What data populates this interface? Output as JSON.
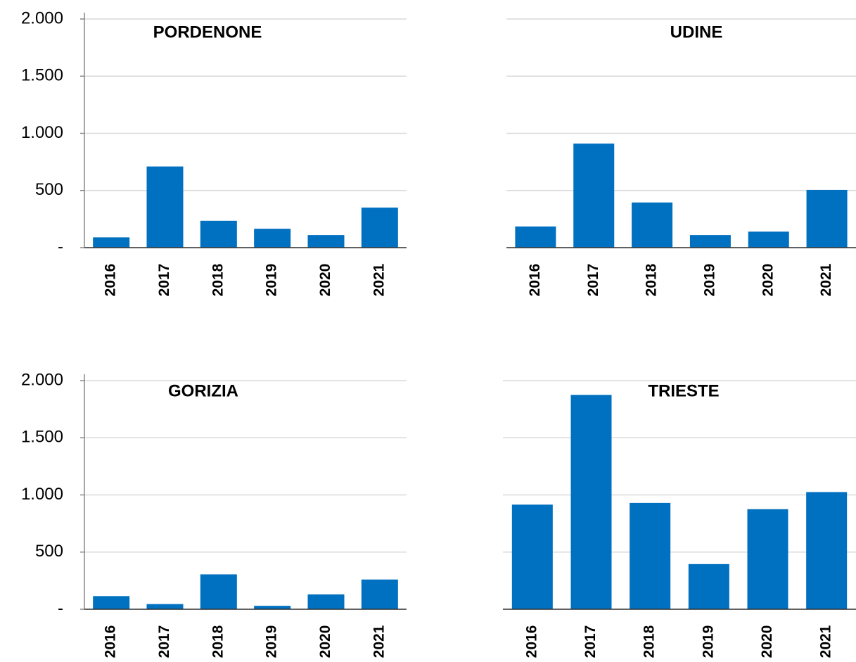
{
  "chart_data": [
    {
      "type": "bar",
      "title": "PORDENONE",
      "categories": [
        "2016",
        "2017",
        "2018",
        "2019",
        "2020",
        "2021"
      ],
      "values": [
        90,
        710,
        235,
        165,
        110,
        350
      ],
      "color": "#0070c0",
      "ylim": [
        0,
        2000
      ],
      "yticks": [
        {
          "value": 0,
          "label": "-"
        },
        500,
        {
          "value": 1000,
          "label": "1.000"
        },
        {
          "value": 1500,
          "label": "1.500"
        },
        {
          "value": 2000,
          "label": "2.000"
        }
      ],
      "grid": true
    },
    {
      "type": "bar",
      "title": "UDINE",
      "categories": [
        "2016",
        "2017",
        "2018",
        "2019",
        "2020",
        "2021"
      ],
      "values": [
        185,
        910,
        395,
        110,
        140,
        505
      ],
      "color": "#0070c0",
      "ylim": [
        0,
        2000
      ],
      "yticks": [
        0,
        500,
        1000,
        1500,
        2000
      ],
      "ytick_labels": false,
      "grid": true
    },
    {
      "type": "bar",
      "title": "GORIZIA",
      "categories": [
        "2016",
        "2017",
        "2018",
        "2019",
        "2020",
        "2021"
      ],
      "values": [
        115,
        45,
        305,
        30,
        130,
        260
      ],
      "color": "#0070c0",
      "ylim": [
        0,
        2000
      ],
      "yticks": [
        {
          "value": 0,
          "label": "-"
        },
        500,
        {
          "value": 1000,
          "label": "1.000"
        },
        {
          "value": 1500,
          "label": "1.500"
        },
        {
          "value": 2000,
          "label": "2.000"
        }
      ],
      "grid": true
    },
    {
      "type": "bar",
      "title": "TRIESTE",
      "categories": [
        "2016",
        "2017",
        "2018",
        "2019",
        "2020",
        "2021"
      ],
      "values": [
        915,
        1875,
        930,
        395,
        875,
        1025
      ],
      "color": "#0070c0",
      "ylim": [
        0,
        2000
      ],
      "yticks": [
        0,
        500,
        1000,
        1500,
        2000
      ],
      "ytick_labels": false,
      "grid": true
    }
  ]
}
